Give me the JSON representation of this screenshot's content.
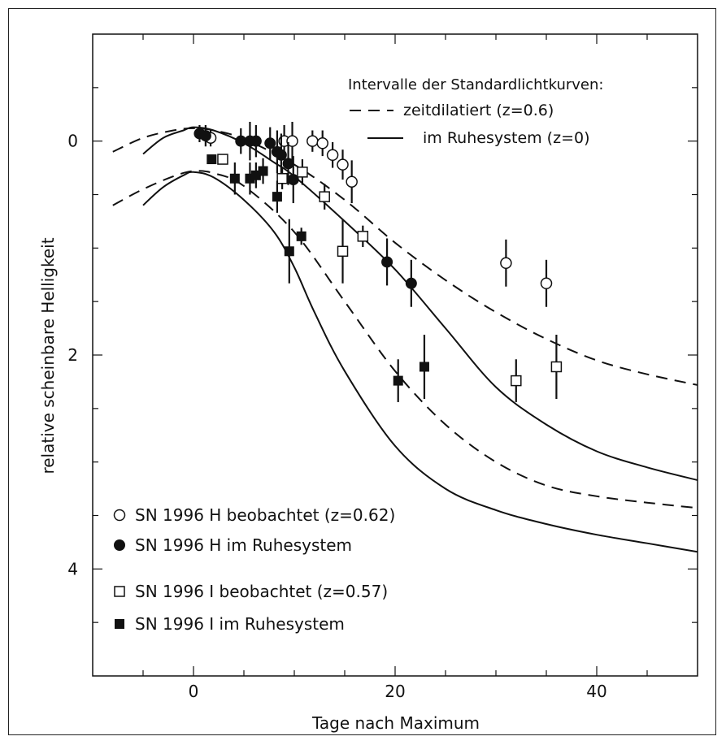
{
  "chart_data": {
    "type": "scatter",
    "xlabel": "Tage nach Maximum",
    "ylabel": "relative scheinbare Helligkeit",
    "xlim": [
      -10,
      50
    ],
    "ylim": [
      5,
      -1
    ],
    "y_inverted": true,
    "x_ticks": [
      0,
      20,
      40
    ],
    "y_ticks": [
      0,
      2,
      4
    ],
    "grid": false,
    "legend_top": {
      "title": "Intervalle der Standardlichtkurven:",
      "entries": [
        {
          "style": "dashed",
          "label": "zeitdilatiert (z=0.6)"
        },
        {
          "style": "solid",
          "label": "im Ruhesystem (z=0)"
        }
      ]
    },
    "legend_bottom": {
      "entries": [
        {
          "marker": "open-circle",
          "label": "SN 1996 H beobachtet (z=0.62)"
        },
        {
          "marker": "filled-circle",
          "label": "SN 1996 H im Ruhesystem"
        },
        {
          "marker": "open-square",
          "label": "SN 1996 I beobachtet (z=0.57)"
        },
        {
          "marker": "filled-square",
          "label": "SN 1996 I im Ruhesystem"
        }
      ]
    },
    "curves": [
      {
        "style": "dashed",
        "bound": "upper",
        "x": [
          -8,
          -5,
          -2,
          0,
          2,
          5,
          10,
          15,
          20,
          25,
          30,
          35,
          40,
          45,
          50
        ],
        "y": [
          0.1,
          -0.03,
          -0.1,
          -0.12,
          -0.1,
          -0.02,
          0.22,
          0.55,
          0.95,
          1.3,
          1.6,
          1.85,
          2.05,
          2.18,
          2.28
        ]
      },
      {
        "style": "dashed",
        "bound": "lower",
        "x": [
          -8,
          -5,
          -2,
          0,
          2,
          5,
          10,
          15,
          20,
          25,
          30,
          35,
          40,
          45,
          50
        ],
        "y": [
          0.6,
          0.45,
          0.33,
          0.28,
          0.3,
          0.42,
          0.85,
          1.5,
          2.15,
          2.65,
          3.0,
          3.22,
          3.32,
          3.38,
          3.43
        ]
      },
      {
        "style": "solid",
        "bound": "upper",
        "x": [
          -5,
          -3,
          -1,
          0,
          2,
          5,
          8,
          10,
          15,
          20,
          25,
          30,
          35,
          40,
          45,
          50
        ],
        "y": [
          0.12,
          -0.03,
          -0.1,
          -0.13,
          -0.1,
          0.02,
          0.2,
          0.33,
          0.75,
          1.2,
          1.75,
          2.3,
          2.65,
          2.9,
          3.05,
          3.17
        ]
      },
      {
        "style": "solid",
        "bound": "lower",
        "x": [
          -5,
          -3,
          -1,
          0,
          2,
          5,
          8,
          10,
          12,
          15,
          20,
          25,
          30,
          35,
          40,
          45,
          50
        ],
        "y": [
          0.6,
          0.43,
          0.32,
          0.29,
          0.34,
          0.55,
          0.85,
          1.18,
          1.6,
          2.15,
          2.85,
          3.25,
          3.45,
          3.58,
          3.68,
          3.76,
          3.84
        ]
      }
    ],
    "series": [
      {
        "name": "SN 1996 H beobachtet (z=0.62)",
        "marker": "open-circle",
        "x": [
          1.7,
          9.0,
          9.8,
          11.8,
          12.8,
          13.8,
          14.8,
          15.7,
          31,
          35
        ],
        "y": [
          -0.03,
          0.0,
          0.0,
          0.0,
          0.02,
          0.13,
          0.22,
          0.38,
          1.14,
          1.33
        ],
        "err": [
          0.08,
          0.15,
          0.18,
          0.1,
          0.12,
          0.12,
          0.14,
          0.2,
          0.22,
          0.22
        ]
      },
      {
        "name": "SN 1996 H im Ruhesystem",
        "marker": "filled-circle",
        "x": [
          0.6,
          1.2,
          4.7,
          5.6,
          6.2,
          7.6,
          8.3,
          8.7,
          9.4,
          9.9,
          19.2,
          21.6
        ],
        "y": [
          -0.07,
          -0.05,
          0.0,
          0.0,
          0.0,
          0.02,
          0.1,
          0.13,
          0.21,
          0.36,
          1.13,
          1.33
        ],
        "err": [
          0.08,
          0.1,
          0.12,
          0.18,
          0.15,
          0.15,
          0.2,
          0.2,
          0.2,
          0.22,
          0.22,
          0.22
        ]
      },
      {
        "name": "SN 1996 I beobachtet (z=0.57)",
        "marker": "open-square",
        "x": [
          2.9,
          8.8,
          10.8,
          13.0,
          14.8,
          16.8,
          32,
          36
        ],
        "y": [
          0.17,
          0.35,
          0.29,
          0.52,
          1.03,
          0.89,
          2.24,
          2.11
        ],
        "err": [
          0.04,
          0.1,
          0.12,
          0.12,
          0.3,
          0.1,
          0.2,
          0.3
        ]
      },
      {
        "name": "SN 1996 I im Ruhesystem",
        "marker": "filled-square",
        "x": [
          1.8,
          4.1,
          5.6,
          6.2,
          6.9,
          8.3,
          9.5,
          10.7,
          20.3,
          22.9
        ],
        "y": [
          0.17,
          0.35,
          0.35,
          0.32,
          0.28,
          0.52,
          1.03,
          0.89,
          2.24,
          2.11
        ],
        "err": [
          0.04,
          0.15,
          0.15,
          0.12,
          0.12,
          0.15,
          0.3,
          0.08,
          0.2,
          0.3
        ]
      }
    ]
  }
}
